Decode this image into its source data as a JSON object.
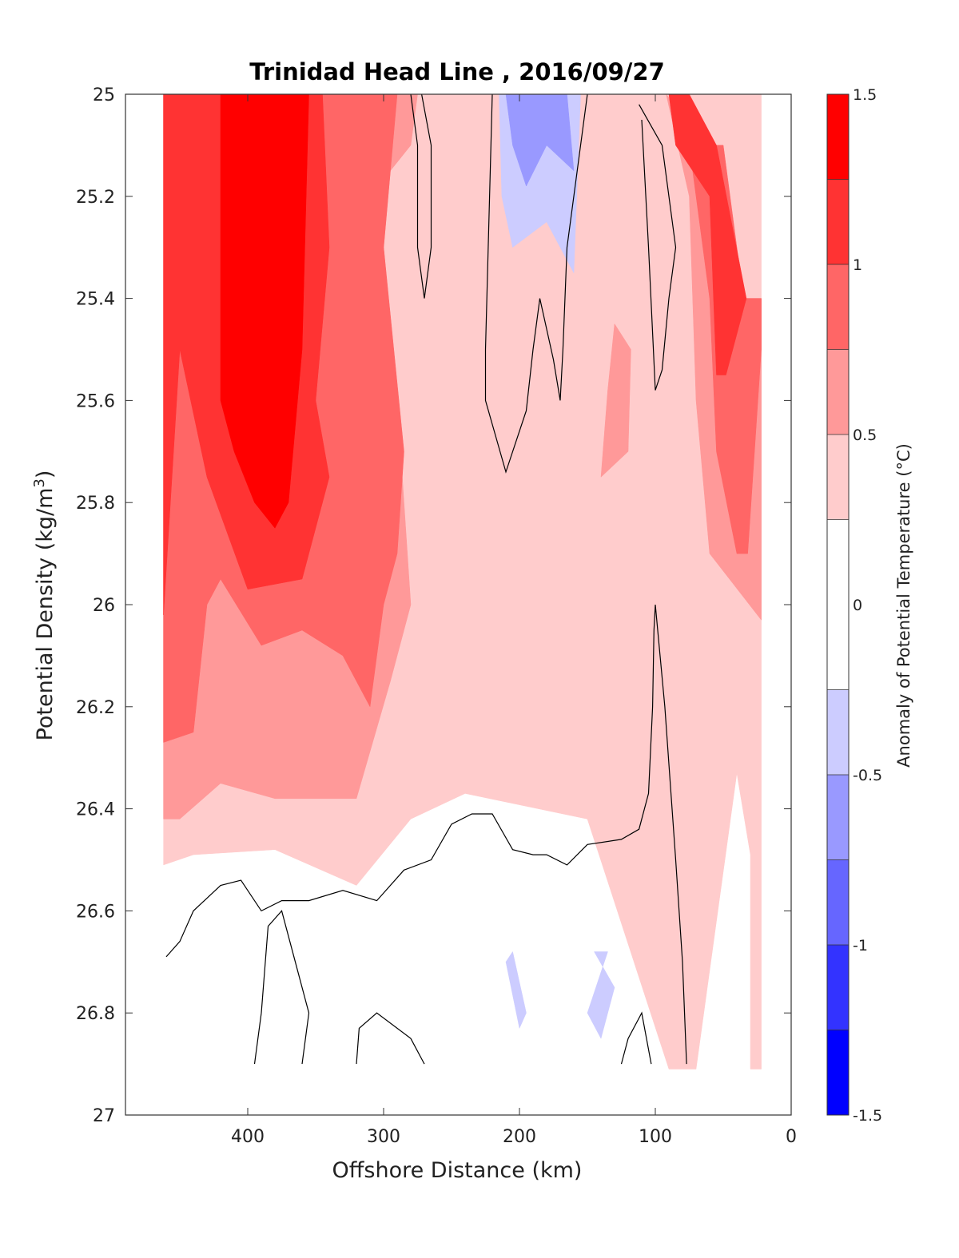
{
  "chart_data": {
    "type": "contourf",
    "title": "Trinidad Head Line , 2016/09/27",
    "xlabel": "Offshore Distance (km)",
    "ylabel_main": "Potential Density (kg/m",
    "ylabel_sup": "3",
    "ylabel_close": ")",
    "xlim": [
      490,
      0
    ],
    "ylim": [
      25,
      27
    ],
    "x_reversed": true,
    "y_reversed": true,
    "xticks": [
      {
        "value": 400,
        "label": "400"
      },
      {
        "value": 300,
        "label": "300"
      },
      {
        "value": 200,
        "label": "200"
      },
      {
        "value": 100,
        "label": "100"
      },
      {
        "value": 0,
        "label": "0"
      }
    ],
    "yticks": [
      {
        "value": 25,
        "label": "25"
      },
      {
        "value": 25.2,
        "label": "25.2"
      },
      {
        "value": 25.4,
        "label": "25.4"
      },
      {
        "value": 25.6,
        "label": "25.6"
      },
      {
        "value": 25.8,
        "label": "25.8"
      },
      {
        "value": 26,
        "label": "26"
      },
      {
        "value": 26.2,
        "label": "26.2"
      },
      {
        "value": 26.4,
        "label": "26.4"
      },
      {
        "value": 26.6,
        "label": "26.6"
      },
      {
        "value": 26.8,
        "label": "26.8"
      },
      {
        "value": 27,
        "label": "27"
      }
    ],
    "colorbar": {
      "label": "Anomaly of Potential Temperature (°C)",
      "range": [
        -1.5,
        1.5
      ],
      "ticks": [
        {
          "value": 1.5,
          "label": "1.5"
        },
        {
          "value": 1,
          "label": "1"
        },
        {
          "value": 0.5,
          "label": "0.5"
        },
        {
          "value": 0,
          "label": "0"
        },
        {
          "value": -0.5,
          "label": "-0.5"
        },
        {
          "value": -1,
          "label": "-1"
        },
        {
          "value": -1.5,
          "label": "-1.5"
        }
      ],
      "levels": [
        {
          "min": 1.25,
          "max": 1.5,
          "color": "#ff0000"
        },
        {
          "min": 1.0,
          "max": 1.25,
          "color": "#ff3333"
        },
        {
          "min": 0.75,
          "max": 1.0,
          "color": "#ff6666"
        },
        {
          "min": 0.5,
          "max": 0.75,
          "color": "#ff9999"
        },
        {
          "min": 0.25,
          "max": 0.5,
          "color": "#ffcccc"
        },
        {
          "min": -0.25,
          "max": 0.25,
          "color": "#ffffff"
        },
        {
          "min": -0.5,
          "max": -0.25,
          "color": "#ccccff"
        },
        {
          "min": -0.75,
          "max": -0.5,
          "color": "#9999ff"
        },
        {
          "min": -1.0,
          "max": -0.75,
          "color": "#6666ff"
        },
        {
          "min": -1.25,
          "max": -1.0,
          "color": "#3333ff"
        },
        {
          "min": -1.5,
          "max": -1.25,
          "color": "#0000ff"
        }
      ]
    },
    "regions": [
      {
        "level": 0.25,
        "color": "#ffcccc",
        "points": [
          [
            462,
            26.51
          ],
          [
            462,
            25
          ],
          [
            22,
            25
          ],
          [
            22,
            26.91
          ],
          [
            30,
            26.91
          ],
          [
            30,
            26.49
          ],
          [
            40,
            26.33
          ],
          [
            70,
            26.91
          ],
          [
            90,
            26.91
          ],
          [
            150,
            26.42
          ],
          [
            240,
            26.37
          ],
          [
            280,
            26.42
          ],
          [
            320,
            26.55
          ],
          [
            380,
            26.48
          ],
          [
            440,
            26.49
          ]
        ]
      },
      {
        "level": 0.5,
        "color": "#ff9999",
        "points": [
          [
            462,
            26.42
          ],
          [
            462,
            25
          ],
          [
            275,
            25
          ],
          [
            280,
            25.1
          ],
          [
            295,
            25.15
          ],
          [
            300,
            25.3
          ],
          [
            290,
            25.6
          ],
          [
            280,
            26.0
          ],
          [
            295,
            26.15
          ],
          [
            320,
            26.38
          ],
          [
            380,
            26.38
          ],
          [
            420,
            26.35
          ],
          [
            450,
            26.42
          ]
        ]
      },
      {
        "level": 0.5,
        "color": "#ff9999",
        "points": [
          [
            92,
            25
          ],
          [
            75,
            25.2
          ],
          [
            70,
            25.6
          ],
          [
            60,
            25.9
          ],
          [
            22,
            26.03
          ],
          [
            22,
            25.4
          ],
          [
            40,
            25.4
          ],
          [
            60,
            25.1
          ]
        ]
      },
      {
        "level": 0.5,
        "color": "#ff9999",
        "points": [
          [
            130,
            25.45
          ],
          [
            135,
            25.58
          ],
          [
            140,
            25.75
          ],
          [
            120,
            25.7
          ],
          [
            118,
            25.5
          ]
        ]
      },
      {
        "level": 0.75,
        "color": "#ff6666",
        "points": [
          [
            462,
            26.27
          ],
          [
            462,
            25
          ],
          [
            290,
            25
          ],
          [
            300,
            25.3
          ],
          [
            285,
            25.7
          ],
          [
            290,
            25.9
          ],
          [
            300,
            26.0
          ],
          [
            310,
            26.2
          ],
          [
            330,
            26.1
          ],
          [
            360,
            26.05
          ],
          [
            390,
            26.08
          ],
          [
            420,
            25.95
          ],
          [
            430,
            26.0
          ],
          [
            440,
            26.25
          ]
        ]
      },
      {
        "level": 0.75,
        "color": "#ff6666",
        "points": [
          [
            75,
            25.1
          ],
          [
            60,
            25.4
          ],
          [
            55,
            25.7
          ],
          [
            40,
            25.9
          ],
          [
            32,
            25.9
          ],
          [
            22,
            25.5
          ],
          [
            22,
            25.4
          ],
          [
            35,
            25.4
          ],
          [
            50,
            25.1
          ]
        ]
      },
      {
        "level": 1.0,
        "color": "#ff3333",
        "points": [
          [
            462,
            26.02
          ],
          [
            462,
            25
          ],
          [
            345,
            25
          ],
          [
            340,
            25.3
          ],
          [
            350,
            25.6
          ],
          [
            340,
            25.75
          ],
          [
            360,
            25.95
          ],
          [
            400,
            25.97
          ],
          [
            430,
            25.75
          ],
          [
            450,
            25.5
          ]
        ]
      },
      {
        "level": 1.0,
        "color": "#ff3333",
        "points": [
          [
            90,
            25
          ],
          [
            85,
            25.1
          ],
          [
            60,
            25.2
          ],
          [
            55,
            25.55
          ],
          [
            48,
            25.55
          ],
          [
            33,
            25.4
          ],
          [
            55,
            25.1
          ],
          [
            75,
            25
          ]
        ]
      },
      {
        "level": 1.25,
        "color": "#ff0000",
        "points": [
          [
            420,
            25.6
          ],
          [
            420,
            25
          ],
          [
            355,
            25
          ],
          [
            360,
            25.5
          ],
          [
            370,
            25.8
          ],
          [
            380,
            25.85
          ],
          [
            395,
            25.8
          ],
          [
            410,
            25.7
          ]
        ]
      },
      {
        "level": -0.25,
        "color": "#ccccff",
        "points": [
          [
            215,
            25
          ],
          [
            213,
            25.2
          ],
          [
            205,
            25.3
          ],
          [
            180,
            25.25
          ],
          [
            160,
            25.35
          ],
          [
            155,
            25
          ],
          [
            195,
            25
          ]
        ]
      },
      {
        "level": -0.5,
        "color": "#9999ff",
        "points": [
          [
            210,
            25
          ],
          [
            205,
            25.1
          ],
          [
            195,
            25.18
          ],
          [
            180,
            25.1
          ],
          [
            160,
            25.15
          ],
          [
            165,
            25
          ],
          [
            195,
            25
          ]
        ]
      },
      {
        "level": -0.25,
        "color": "#ccccff",
        "points": [
          [
            205,
            26.68
          ],
          [
            195,
            26.8
          ],
          [
            200,
            26.83
          ],
          [
            210,
            26.7
          ]
        ]
      },
      {
        "level": -0.25,
        "color": "#ccccff",
        "points": [
          [
            150,
            26.8
          ],
          [
            140,
            26.85
          ],
          [
            130,
            26.75
          ],
          [
            145,
            26.68
          ],
          [
            135,
            26.68
          ]
        ]
      }
    ],
    "contours": [
      {
        "level": 0,
        "points": [
          [
            460,
            26.69
          ],
          [
            450,
            26.66
          ],
          [
            440,
            26.6
          ],
          [
            420,
            26.55
          ],
          [
            405,
            26.54
          ],
          [
            390,
            26.6
          ],
          [
            375,
            26.58
          ],
          [
            355,
            26.58
          ],
          [
            330,
            26.56
          ],
          [
            305,
            26.58
          ],
          [
            285,
            26.52
          ],
          [
            265,
            26.5
          ],
          [
            250,
            26.43
          ],
          [
            235,
            26.41
          ],
          [
            220,
            26.41
          ],
          [
            205,
            26.48
          ],
          [
            190,
            26.49
          ],
          [
            180,
            26.49
          ],
          [
            165,
            26.51
          ],
          [
            150,
            26.47
          ],
          [
            125,
            26.46
          ],
          [
            112,
            26.44
          ],
          [
            105,
            26.37
          ],
          [
            102,
            26.2
          ],
          [
            101,
            26.05
          ],
          [
            100,
            26.0
          ],
          [
            93,
            26.2
          ],
          [
            85,
            26.5
          ],
          [
            80,
            26.7
          ],
          [
            77,
            26.9
          ]
        ]
      },
      {
        "level": 0,
        "points": [
          [
            272,
            25
          ],
          [
            265,
            25.1
          ],
          [
            265,
            25.3
          ],
          [
            270,
            25.4
          ],
          [
            275,
            25.3
          ],
          [
            275,
            25.1
          ],
          [
            280,
            25
          ]
        ]
      },
      {
        "level": 0,
        "points": [
          [
            220,
            25
          ],
          [
            225,
            25.5
          ],
          [
            225,
            25.6
          ],
          [
            210,
            25.74
          ],
          [
            195,
            25.62
          ],
          [
            190,
            25.5
          ],
          [
            185,
            25.4
          ],
          [
            175,
            25.52
          ],
          [
            170,
            25.6
          ],
          [
            168,
            25.5
          ],
          [
            165,
            25.3
          ],
          [
            150,
            25
          ]
        ]
      },
      {
        "level": 0,
        "points": [
          [
            110,
            25.05
          ],
          [
            105,
            25.3
          ],
          [
            100,
            25.58
          ],
          [
            95,
            25.54
          ],
          [
            90,
            25.4
          ],
          [
            85,
            25.3
          ],
          [
            95,
            25.1
          ],
          [
            112,
            25.02
          ]
        ]
      },
      {
        "level": 0,
        "points": [
          [
            395,
            26.9
          ],
          [
            390,
            26.8
          ],
          [
            385,
            26.63
          ],
          [
            375,
            26.6
          ],
          [
            365,
            26.7
          ],
          [
            355,
            26.8
          ],
          [
            360,
            26.9
          ]
        ]
      },
      {
        "level": 0,
        "points": [
          [
            320,
            26.9
          ],
          [
            318,
            26.83
          ],
          [
            305,
            26.8
          ],
          [
            280,
            26.85
          ],
          [
            270,
            26.9
          ]
        ]
      },
      {
        "level": 0,
        "points": [
          [
            125,
            26.9
          ],
          [
            120,
            26.85
          ],
          [
            110,
            26.8
          ],
          [
            103,
            26.9
          ]
        ]
      }
    ]
  }
}
